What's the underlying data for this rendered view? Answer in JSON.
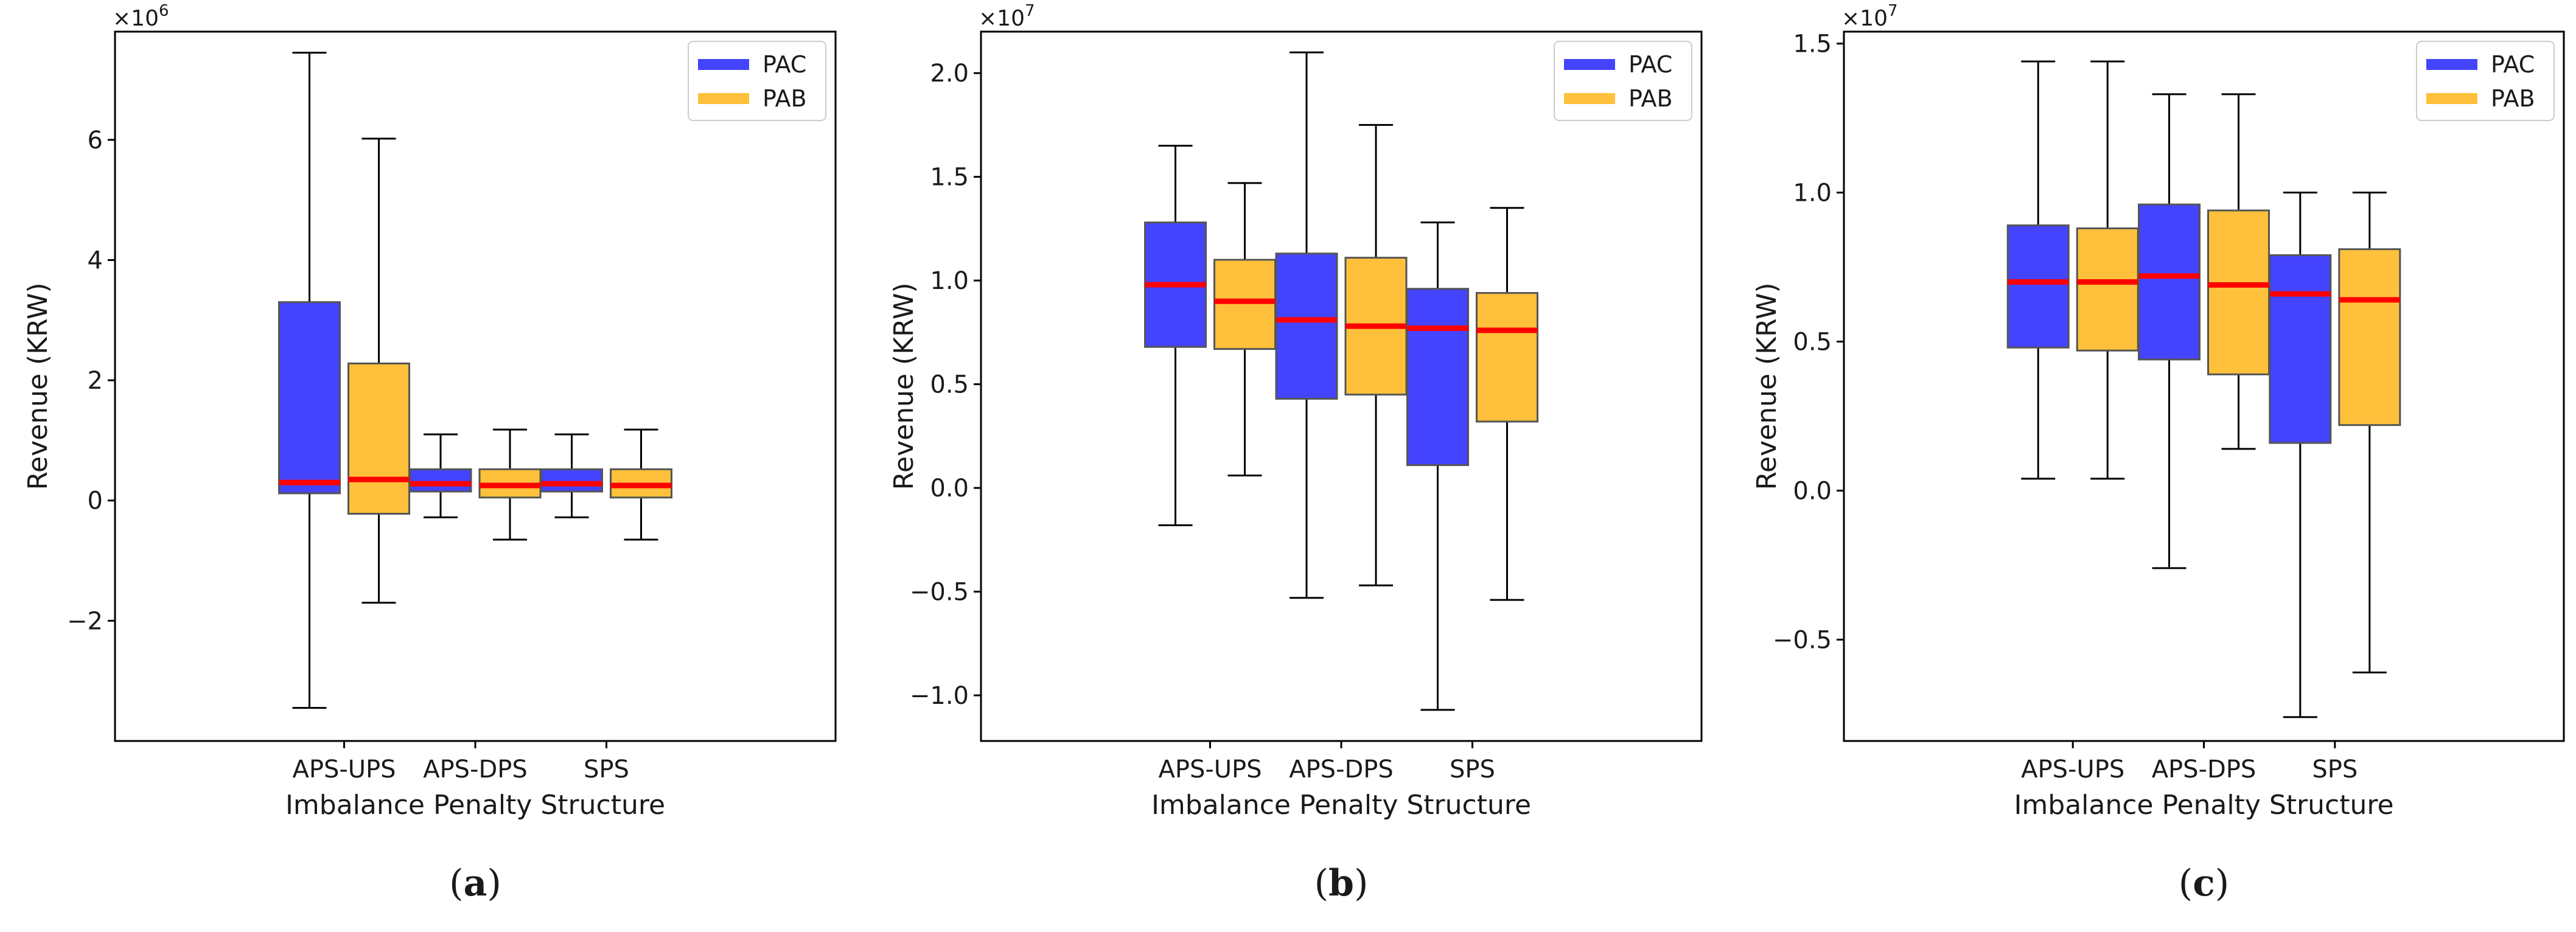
{
  "chart_data": [
    {
      "type": "box",
      "panel_caption": "a",
      "categories": [
        "APS-UPS",
        "APS-DPS",
        "SPS"
      ],
      "xlabel": "Imbalance Penalty Structure",
      "ylabel": "Revenue (KRW)",
      "y_multiplier_label": "×10^6",
      "y_multiplier_base": "×10",
      "y_multiplier_exp": "6",
      "ylim": [
        -4.0,
        7.8
      ],
      "yticks": [
        -2,
        0,
        2,
        4,
        6
      ],
      "ytick_labels": [
        "−2",
        "0",
        "2",
        "4",
        "6"
      ],
      "legend_position": "top-right",
      "series": [
        {
          "name": "PAC",
          "color": "#4444ff",
          "boxes": [
            {
              "whislo": -3.45,
              "q1": 0.12,
              "median": 0.3,
              "q3": 3.3,
              "whishi": 7.45
            },
            {
              "whislo": -0.28,
              "q1": 0.15,
              "median": 0.28,
              "q3": 0.52,
              "whishi": 1.1
            },
            {
              "whislo": -0.28,
              "q1": 0.15,
              "median": 0.28,
              "q3": 0.52,
              "whishi": 1.1
            }
          ]
        },
        {
          "name": "PAB",
          "color": "#ffc13b",
          "boxes": [
            {
              "whislo": -1.7,
              "q1": -0.22,
              "median": 0.35,
              "q3": 2.28,
              "whishi": 6.02
            },
            {
              "whislo": -0.65,
              "q1": 0.05,
              "median": 0.25,
              "q3": 0.52,
              "whishi": 1.18
            },
            {
              "whislo": -0.65,
              "q1": 0.05,
              "median": 0.25,
              "q3": 0.52,
              "whishi": 1.18
            }
          ]
        }
      ]
    },
    {
      "type": "box",
      "panel_caption": "b",
      "categories": [
        "APS-UPS",
        "APS-DPS",
        "SPS"
      ],
      "xlabel": "Imbalance Penalty Structure",
      "ylabel": "Revenue (KRW)",
      "y_multiplier_label": "×10^7",
      "y_multiplier_base": "×10",
      "y_multiplier_exp": "7",
      "ylim": [
        -1.22,
        2.2
      ],
      "yticks": [
        -1.0,
        -0.5,
        0.0,
        0.5,
        1.0,
        1.5,
        2.0
      ],
      "ytick_labels": [
        "−1.0",
        "−0.5",
        "0.0",
        "0.5",
        "1.0",
        "1.5",
        "2.0"
      ],
      "legend_position": "top-right",
      "series": [
        {
          "name": "PAC",
          "color": "#4444ff",
          "boxes": [
            {
              "whislo": -0.18,
              "q1": 0.68,
              "median": 0.98,
              "q3": 1.28,
              "whishi": 1.65
            },
            {
              "whislo": -0.53,
              "q1": 0.43,
              "median": 0.81,
              "q3": 1.13,
              "whishi": 2.1
            },
            {
              "whislo": -1.07,
              "q1": 0.11,
              "median": 0.77,
              "q3": 0.96,
              "whishi": 1.28
            }
          ]
        },
        {
          "name": "PAB",
          "color": "#ffc13b",
          "boxes": [
            {
              "whislo": 0.06,
              "q1": 0.67,
              "median": 0.9,
              "q3": 1.1,
              "whishi": 1.47
            },
            {
              "whislo": -0.47,
              "q1": 0.45,
              "median": 0.78,
              "q3": 1.11,
              "whishi": 1.75
            },
            {
              "whislo": -0.54,
              "q1": 0.32,
              "median": 0.76,
              "q3": 0.94,
              "whishi": 1.35
            }
          ]
        }
      ]
    },
    {
      "type": "box",
      "panel_caption": "c",
      "categories": [
        "APS-UPS",
        "APS-DPS",
        "SPS"
      ],
      "xlabel": "Imbalance Penalty Structure",
      "ylabel": "Revenue (KRW)",
      "y_multiplier_label": "×10^7",
      "y_multiplier_base": "×10",
      "y_multiplier_exp": "7",
      "ylim": [
        -0.84,
        1.54
      ],
      "yticks": [
        -0.5,
        0.0,
        0.5,
        1.0,
        1.5
      ],
      "ytick_labels": [
        "−0.5",
        "0.0",
        "0.5",
        "1.0",
        "1.5"
      ],
      "legend_position": "top-right",
      "series": [
        {
          "name": "PAC",
          "color": "#4444ff",
          "boxes": [
            {
              "whislo": 0.04,
              "q1": 0.48,
              "median": 0.7,
              "q3": 0.89,
              "whishi": 1.44
            },
            {
              "whislo": -0.26,
              "q1": 0.44,
              "median": 0.72,
              "q3": 0.96,
              "whishi": 1.33
            },
            {
              "whislo": -0.76,
              "q1": 0.16,
              "median": 0.66,
              "q3": 0.79,
              "whishi": 1.0
            }
          ]
        },
        {
          "name": "PAB",
          "color": "#ffc13b",
          "boxes": [
            {
              "whislo": 0.04,
              "q1": 0.47,
              "median": 0.7,
              "q3": 0.88,
              "whishi": 1.44
            },
            {
              "whislo": 0.14,
              "q1": 0.39,
              "median": 0.69,
              "q3": 0.94,
              "whishi": 1.33
            },
            {
              "whislo": -0.61,
              "q1": 0.22,
              "median": 0.64,
              "q3": 0.81,
              "whishi": 1.0
            }
          ]
        }
      ]
    }
  ],
  "style": {
    "median_color": "#ff0000",
    "edge_color": "#555555",
    "whisker_color": "#000000"
  }
}
